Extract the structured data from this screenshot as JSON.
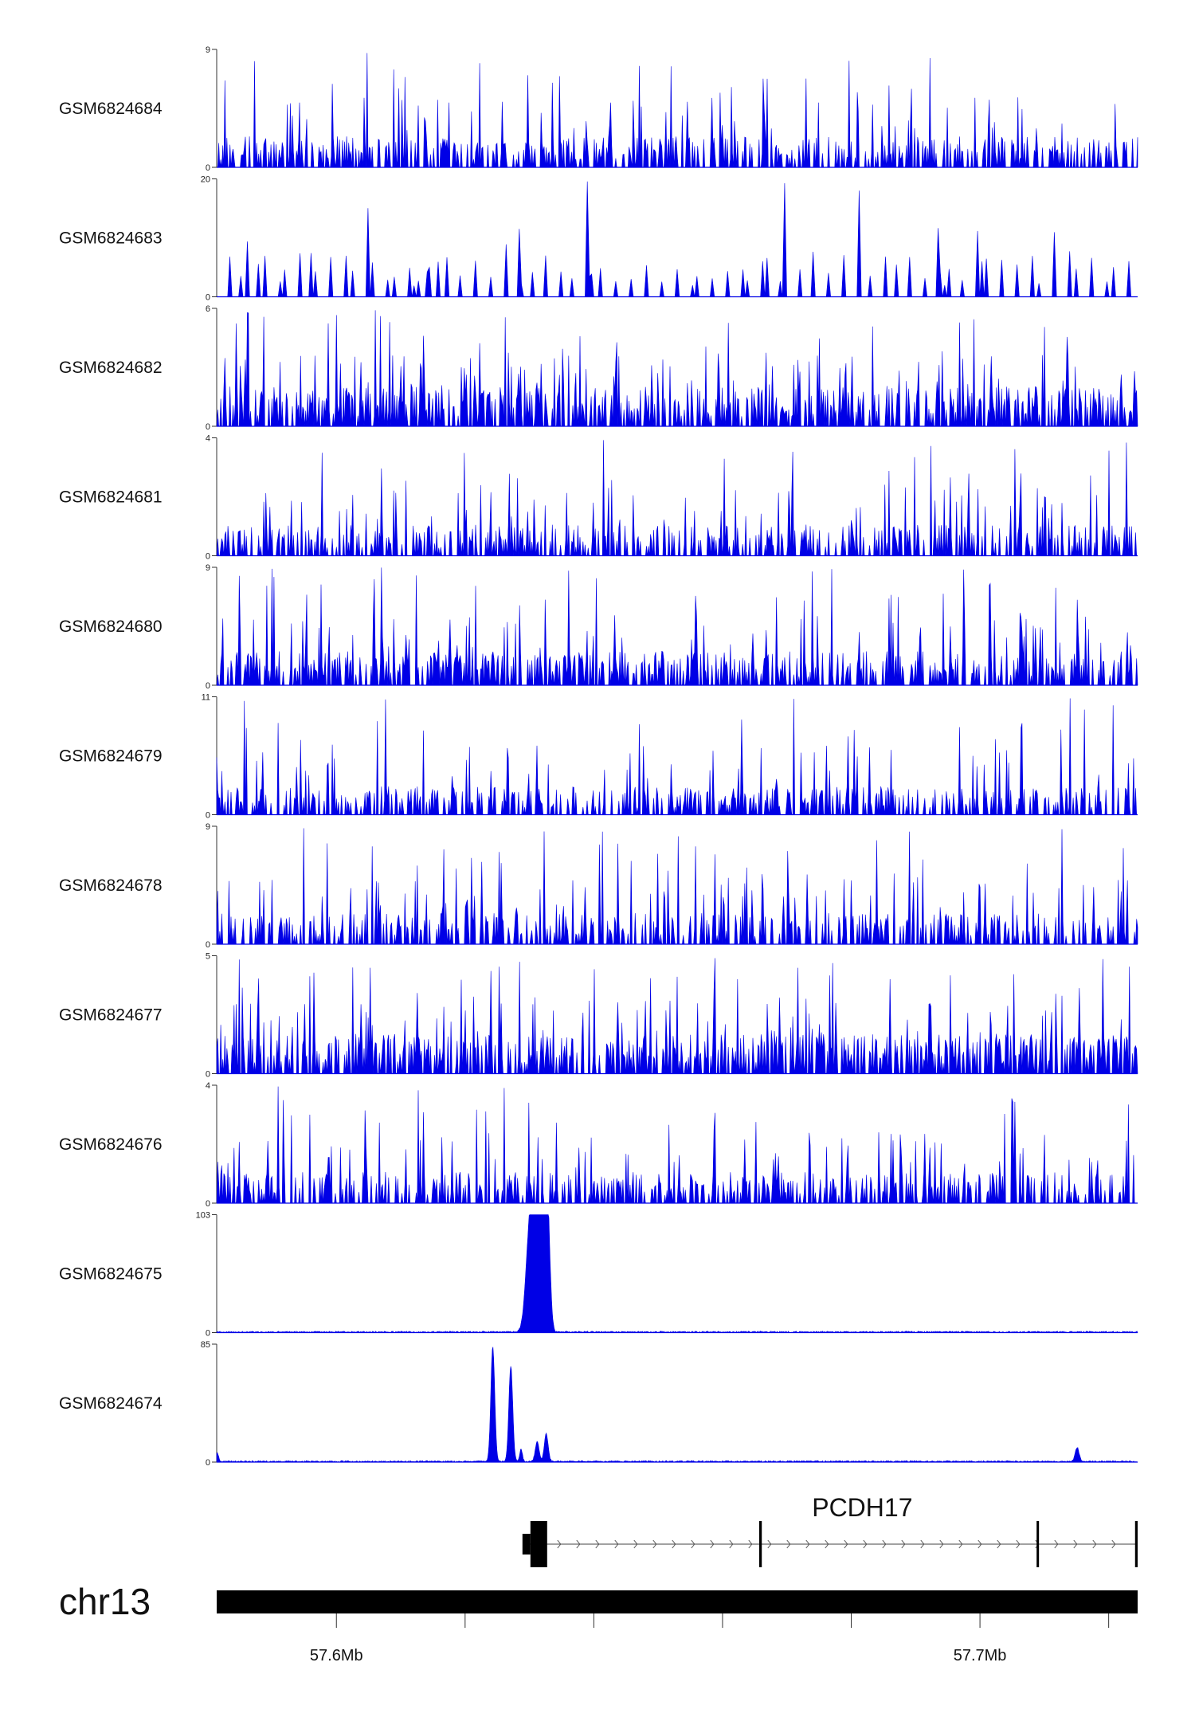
{
  "chart_data": {
    "type": "area",
    "chromosome": "chr13",
    "x_range_mb": [
      57.5814,
      57.7245
    ],
    "tracks": [
      {
        "name": "GSM6824684",
        "ymax": 9,
        "ymin": 0,
        "kind": "noise",
        "seed": 11,
        "density": 0.45,
        "level": 0.22
      },
      {
        "name": "GSM6824683",
        "ymax": 20,
        "ymin": 0,
        "kind": "sparse",
        "seed": 23,
        "density": 0.12,
        "level": 0.3
      },
      {
        "name": "GSM6824682",
        "ymax": 6,
        "ymin": 0,
        "kind": "noise",
        "seed": 37,
        "density": 0.55,
        "level": 0.28
      },
      {
        "name": "GSM6824681",
        "ymax": 4,
        "ymin": 0,
        "kind": "noise",
        "seed": 41,
        "density": 0.45,
        "level": 0.22
      },
      {
        "name": "GSM6824680",
        "ymax": 9,
        "ymin": 0,
        "kind": "noise",
        "seed": 53,
        "density": 0.5,
        "level": 0.24
      },
      {
        "name": "GSM6824679",
        "ymax": 11,
        "ymin": 0,
        "kind": "noise",
        "seed": 67,
        "density": 0.42,
        "level": 0.2
      },
      {
        "name": "GSM6824678",
        "ymax": 9,
        "ymin": 0,
        "kind": "noise",
        "seed": 71,
        "density": 0.42,
        "level": 0.22
      },
      {
        "name": "GSM6824677",
        "ymax": 5,
        "ymin": 0,
        "kind": "noise",
        "seed": 83,
        "density": 0.55,
        "level": 0.28
      },
      {
        "name": "GSM6824676",
        "ymax": 4,
        "ymin": 0,
        "kind": "noise",
        "seed": 97,
        "density": 0.45,
        "level": 0.22
      },
      {
        "name": "GSM6824675",
        "ymax": 103,
        "ymin": 0,
        "kind": "peaks",
        "peaks": [
          {
            "x": 57.63,
            "y": 78,
            "w": 0.0006
          },
          {
            "x": 57.631,
            "y": 98,
            "w": 0.0006
          },
          {
            "x": 57.6316,
            "y": 100,
            "w": 0.0006
          },
          {
            "x": 57.6322,
            "y": 95,
            "w": 0.0005
          },
          {
            "x": 57.6328,
            "y": 80,
            "w": 0.0004
          }
        ]
      },
      {
        "name": "GSM6824674",
        "ymax": 85,
        "ymin": 0,
        "kind": "peaks",
        "peaks": [
          {
            "x": 57.5815,
            "y": 6,
            "w": 0.0002
          },
          {
            "x": 57.6243,
            "y": 83,
            "w": 0.0003
          },
          {
            "x": 57.6271,
            "y": 69,
            "w": 0.0003
          },
          {
            "x": 57.6287,
            "y": 9,
            "w": 0.0002
          },
          {
            "x": 57.6312,
            "y": 14,
            "w": 0.0003
          },
          {
            "x": 57.6326,
            "y": 20,
            "w": 0.0003
          },
          {
            "x": 57.7151,
            "y": 10,
            "w": 0.0003
          }
        ]
      }
    ],
    "gene": {
      "name": "PCDH17",
      "strand": "+",
      "start_mb": 57.6299,
      "end_mb": 57.7245,
      "exons": [
        {
          "start_mb": 57.6299,
          "end_mb": 57.6325,
          "tall": true
        },
        {
          "start_mb": 57.6657,
          "end_mb": 57.6661,
          "tall": true
        },
        {
          "start_mb": 57.7088,
          "end_mb": 57.7091,
          "tall": true
        },
        {
          "start_mb": 57.7241,
          "end_mb": 57.7245,
          "tall": true
        }
      ]
    },
    "x_ticks_mb": [
      57.6,
      57.62,
      57.64,
      57.66,
      57.68,
      57.7,
      57.72
    ],
    "x_tick_labels": [
      {
        "mb": 57.6,
        "label": "57.6Mb"
      },
      {
        "mb": 57.7,
        "label": "57.7Mb"
      }
    ]
  }
}
